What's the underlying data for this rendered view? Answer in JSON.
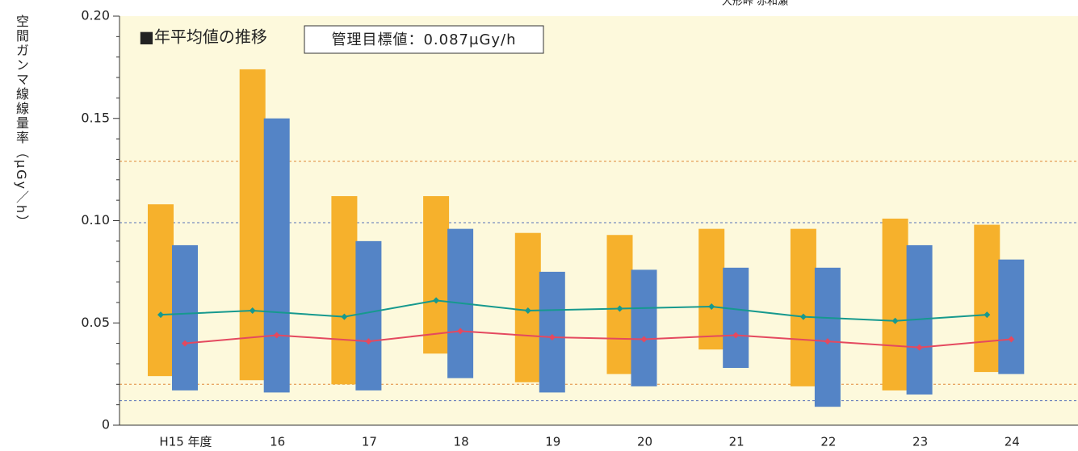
{
  "chart_data": {
    "type": "range-bar-line",
    "title": "■年平均値の推移",
    "annotation": "管理目標値：0.087μGy/h",
    "header": "大形峠 赤和瀬",
    "y_axis_label": "空間ガンマ線線量率（μGy／h）",
    "categories": [
      "H15 年度",
      "16",
      "17",
      "18",
      "19",
      "20",
      "21",
      "22",
      "23",
      "24"
    ],
    "series": [
      {
        "kind": "range",
        "color": "#f6b12c",
        "values": [
          [
            0.024,
            0.108
          ],
          [
            0.022,
            0.174
          ],
          [
            0.02,
            0.112
          ],
          [
            0.035,
            0.112
          ],
          [
            0.021,
            0.094
          ],
          [
            0.025,
            0.093
          ],
          [
            0.037,
            0.096
          ],
          [
            0.019,
            0.096
          ],
          [
            0.017,
            0.101
          ],
          [
            0.026,
            0.098
          ]
        ]
      },
      {
        "kind": "range",
        "color": "#5484c6",
        "values": [
          [
            0.017,
            0.088
          ],
          [
            0.016,
            0.15
          ],
          [
            0.017,
            0.09
          ],
          [
            0.023,
            0.096
          ],
          [
            0.016,
            0.075
          ],
          [
            0.019,
            0.076
          ],
          [
            0.028,
            0.077
          ],
          [
            0.009,
            0.077
          ],
          [
            0.015,
            0.088
          ],
          [
            0.025,
            0.081
          ]
        ]
      },
      {
        "kind": "line",
        "color": "#16998e",
        "values": [
          0.054,
          0.056,
          0.053,
          0.061,
          0.056,
          0.057,
          0.058,
          0.053,
          0.051,
          0.054
        ]
      },
      {
        "kind": "line",
        "color": "#e4495f",
        "values": [
          0.04,
          0.044,
          0.041,
          0.046,
          0.043,
          0.042,
          0.044,
          0.041,
          0.038,
          0.042
        ]
      }
    ],
    "reference_lines": [
      {
        "value": 0.129,
        "color": "#e0893a"
      },
      {
        "value": 0.02,
        "color": "#e0893a"
      },
      {
        "value": 0.099,
        "color": "#5872b8"
      },
      {
        "value": 0.012,
        "color": "#5872b8"
      }
    ],
    "ylim": [
      0,
      0.2
    ],
    "yticks": [
      0,
      0.05,
      {
        "value": 0.1,
        "label": "0.10"
      },
      0.15,
      {
        "value": 0.2,
        "label": "0.20"
      }
    ],
    "background": "#fdf9dc"
  }
}
